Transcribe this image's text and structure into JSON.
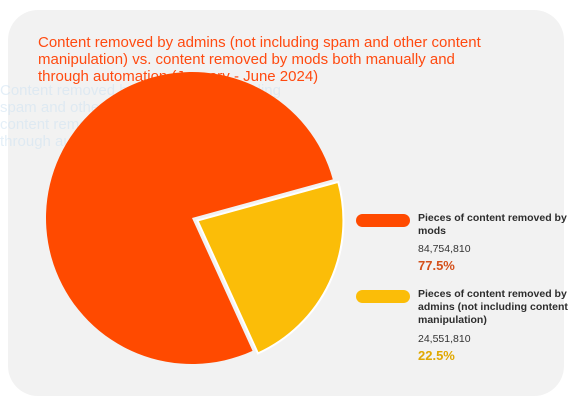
{
  "chart_data": {
    "type": "pie",
    "title": "Content removed by admins (not including spam and other content manipulation) vs. content removed by mods both manually and through automation (January - June 2024)",
    "slices": [
      {
        "label": "Pieces of content removed by mods",
        "value": 84754810,
        "value_text": "84,754,810",
        "percent_text": "77.5%",
        "color": "#ff4a00"
      },
      {
        "label": "Pieces of content removed by admins (not including content manipulation)",
        "value": 24551810,
        "value_text": "24,551,810",
        "percent_text": "22.5%",
        "color": "#fbbd08"
      }
    ],
    "legend_position": "right"
  },
  "colors": {
    "card_bg": "#f2f2f2",
    "title": "#ff4a10",
    "mods_pct": "#d4501a",
    "admins_pct": "#e0a800"
  }
}
